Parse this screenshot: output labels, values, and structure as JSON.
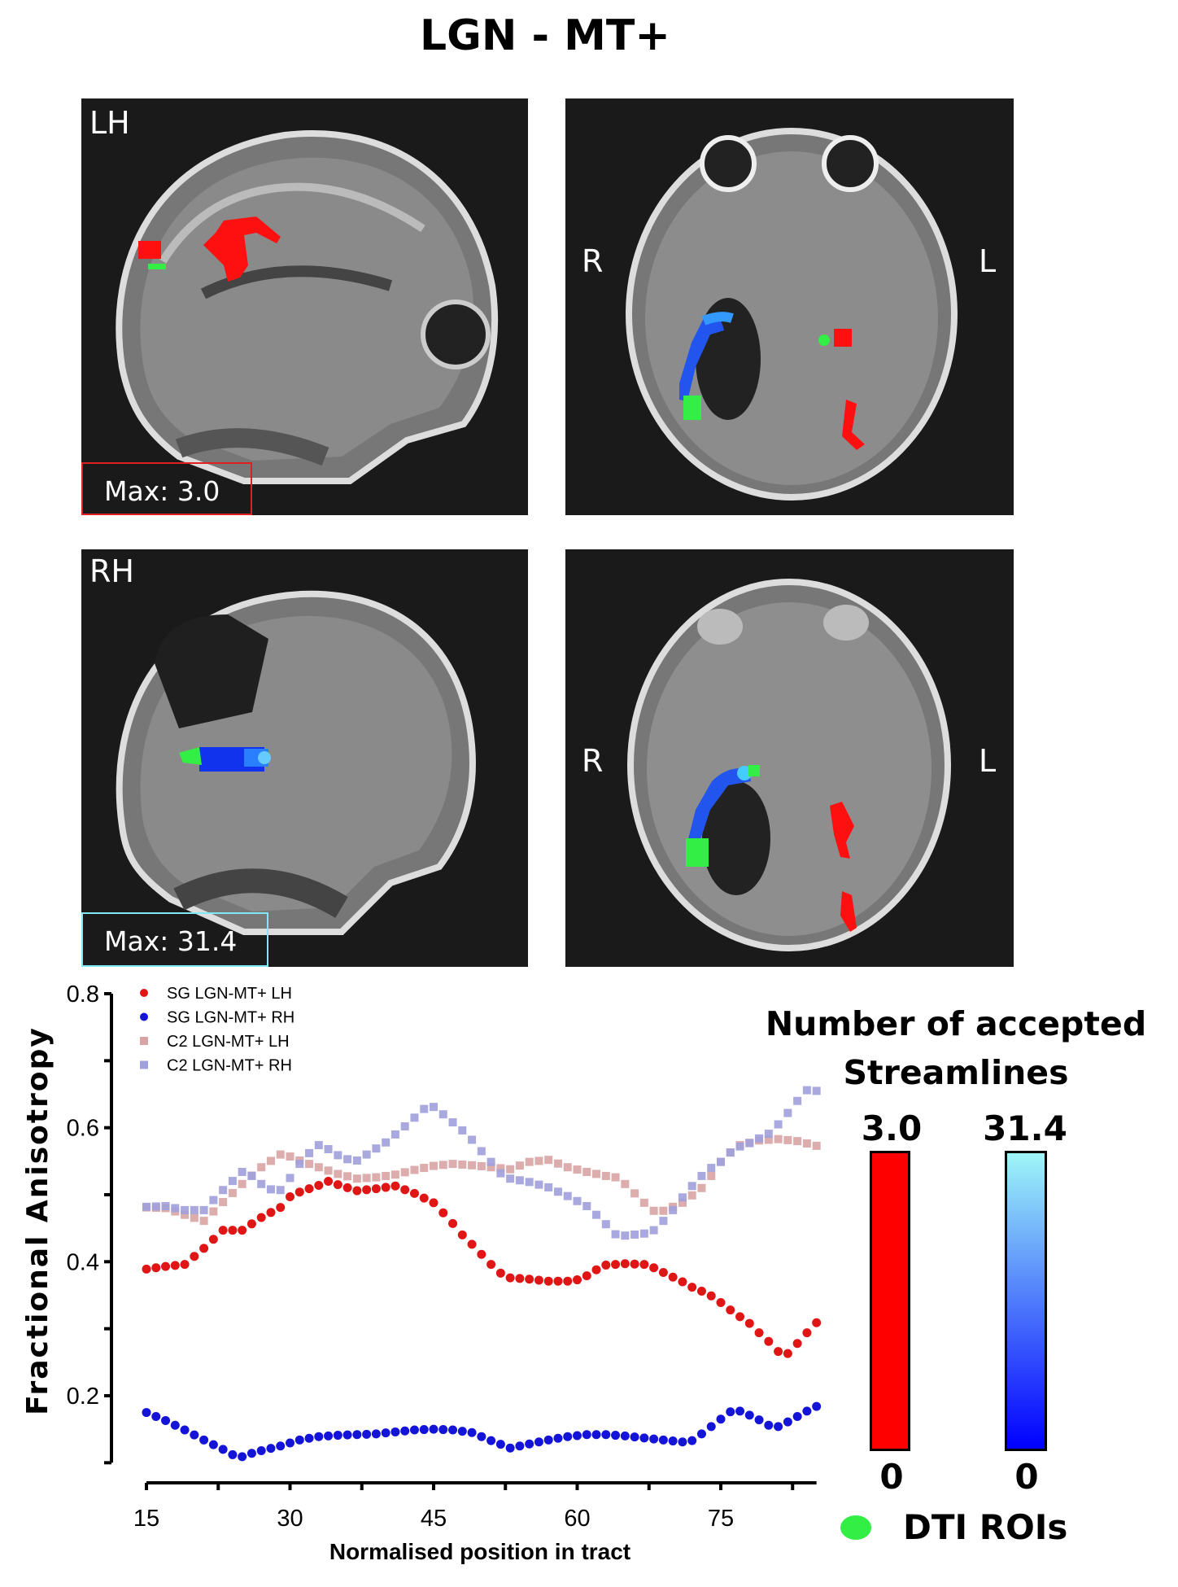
{
  "title": "LGN - MT+",
  "panels": {
    "top_left": {
      "label": "LH",
      "max_label": "Max: 3.0",
      "max_color": "#e02020"
    },
    "top_right": {
      "left_label": "R",
      "right_label": "L"
    },
    "bottom_left": {
      "label": "RH",
      "max_label": "Max: 31.4",
      "max_color": "#7fe8f0"
    },
    "bottom_right": {
      "left_label": "R",
      "right_label": "L"
    }
  },
  "colorbars": {
    "title_line1": "Number of accepted",
    "title_line2": "Streamlines",
    "bars": [
      {
        "max": "3.0",
        "min": "0",
        "color_top": "#ff0000",
        "color_bottom": "#ff0000"
      },
      {
        "max": "31.4",
        "min": "0",
        "color_top": "#9ef6f8",
        "color_bottom": "#0000ff"
      }
    ],
    "roi_label": "DTI ROIs",
    "roi_color": "#33ee44"
  },
  "chart_data": {
    "type": "scatter",
    "xlabel": "Normalised position in tract",
    "ylabel": "Fractional Anisotropy",
    "xlim": [
      15,
      85
    ],
    "ylim": [
      0.1,
      0.8
    ],
    "xticks": [
      15,
      30,
      45,
      60,
      75
    ],
    "yticks": [
      0.2,
      0.4,
      0.6,
      0.8
    ],
    "ytick_labels": [
      "0.2",
      "0.4",
      "0.6",
      "0.8"
    ],
    "legend_position": "top-left",
    "series": [
      {
        "name": "SG LGN-MT+ LH",
        "marker": "circle",
        "color": "#e01515",
        "x": [
          15,
          17,
          19,
          21,
          23,
          25,
          27,
          29,
          30,
          31,
          33,
          34,
          35,
          37,
          39,
          41,
          43,
          45,
          46,
          47,
          48,
          49,
          50,
          51,
          52,
          53,
          55,
          57,
          59,
          60,
          61,
          62,
          63,
          65,
          67,
          68,
          69,
          70,
          71,
          72,
          73,
          74,
          75,
          76,
          77,
          78,
          79,
          80,
          81,
          82,
          83,
          84,
          85
        ],
        "y": [
          0.389,
          0.393,
          0.396,
          0.42,
          0.447,
          0.447,
          0.466,
          0.481,
          0.497,
          0.504,
          0.514,
          0.52,
          0.515,
          0.506,
          0.509,
          0.513,
          0.502,
          0.488,
          0.473,
          0.457,
          0.44,
          0.426,
          0.411,
          0.396,
          0.383,
          0.376,
          0.374,
          0.371,
          0.371,
          0.373,
          0.379,
          0.388,
          0.395,
          0.397,
          0.396,
          0.391,
          0.384,
          0.377,
          0.37,
          0.362,
          0.356,
          0.349,
          0.339,
          0.328,
          0.318,
          0.308,
          0.294,
          0.281,
          0.266,
          0.263,
          0.278,
          0.294,
          0.309
        ]
      },
      {
        "name": "SG LGN-MT+ RH",
        "marker": "circle",
        "color": "#1414d8",
        "x": [
          15,
          17,
          19,
          21,
          23,
          24,
          25,
          26,
          27,
          29,
          31,
          33,
          35,
          39,
          41,
          43,
          45,
          47,
          49,
          51,
          53,
          55,
          57,
          59,
          61,
          63,
          65,
          67,
          69,
          71,
          72,
          73,
          74,
          75,
          76,
          77,
          78,
          79,
          80,
          81,
          82,
          83,
          84,
          85
        ],
        "y": [
          0.175,
          0.163,
          0.149,
          0.134,
          0.12,
          0.112,
          0.109,
          0.114,
          0.118,
          0.125,
          0.134,
          0.139,
          0.141,
          0.143,
          0.146,
          0.149,
          0.15,
          0.149,
          0.145,
          0.133,
          0.122,
          0.128,
          0.134,
          0.139,
          0.142,
          0.142,
          0.14,
          0.137,
          0.134,
          0.131,
          0.133,
          0.143,
          0.154,
          0.165,
          0.176,
          0.177,
          0.171,
          0.164,
          0.156,
          0.154,
          0.161,
          0.169,
          0.177,
          0.184
        ]
      },
      {
        "name": "C2 LGN-MT+ LH",
        "marker": "square",
        "color": "#d9a3a3",
        "x": [
          15,
          17,
          19,
          21,
          22,
          23,
          25,
          27,
          29,
          30,
          31,
          33,
          35,
          37,
          39,
          41,
          43,
          45,
          47,
          49,
          51,
          53,
          55,
          57,
          59,
          61,
          63,
          64,
          65,
          66,
          67,
          68,
          69,
          71,
          73,
          74,
          75,
          76,
          77,
          79,
          81,
          83,
          85
        ],
        "y": [
          0.481,
          0.48,
          0.47,
          0.461,
          0.475,
          0.489,
          0.516,
          0.541,
          0.56,
          0.557,
          0.551,
          0.541,
          0.531,
          0.524,
          0.526,
          0.53,
          0.537,
          0.543,
          0.546,
          0.544,
          0.541,
          0.538,
          0.549,
          0.552,
          0.541,
          0.534,
          0.528,
          0.526,
          0.516,
          0.502,
          0.488,
          0.476,
          0.476,
          0.488,
          0.51,
          0.528,
          0.549,
          0.563,
          0.574,
          0.581,
          0.583,
          0.58,
          0.573
        ]
      },
      {
        "name": "C2 LGN-MT+ RH",
        "marker": "square",
        "color": "#a0a0dc",
        "x": [
          15,
          17,
          19,
          21,
          22,
          23,
          25,
          26,
          27,
          28,
          29,
          30,
          31,
          32,
          33,
          34,
          35,
          36,
          37,
          38,
          39,
          40,
          41,
          42,
          43,
          44,
          45,
          46,
          47,
          48,
          49,
          50,
          51,
          52,
          53,
          55,
          57,
          59,
          61,
          62,
          63,
          64,
          65,
          67,
          68,
          69,
          70,
          71,
          72,
          73,
          74,
          75,
          76,
          77,
          78,
          79,
          80,
          81,
          82,
          83,
          84,
          85
        ],
        "y": [
          0.482,
          0.483,
          0.477,
          0.477,
          0.492,
          0.507,
          0.534,
          0.528,
          0.516,
          0.508,
          0.507,
          0.525,
          0.546,
          0.562,
          0.574,
          0.568,
          0.559,
          0.553,
          0.551,
          0.56,
          0.569,
          0.578,
          0.59,
          0.602,
          0.615,
          0.628,
          0.631,
          0.62,
          0.608,
          0.596,
          0.582,
          0.565,
          0.549,
          0.532,
          0.524,
          0.519,
          0.511,
          0.498,
          0.483,
          0.47,
          0.456,
          0.441,
          0.439,
          0.442,
          0.447,
          0.461,
          0.477,
          0.496,
          0.513,
          0.528,
          0.54,
          0.549,
          0.563,
          0.572,
          0.577,
          0.584,
          0.591,
          0.605,
          0.622,
          0.64,
          0.656,
          0.655
        ]
      }
    ]
  }
}
